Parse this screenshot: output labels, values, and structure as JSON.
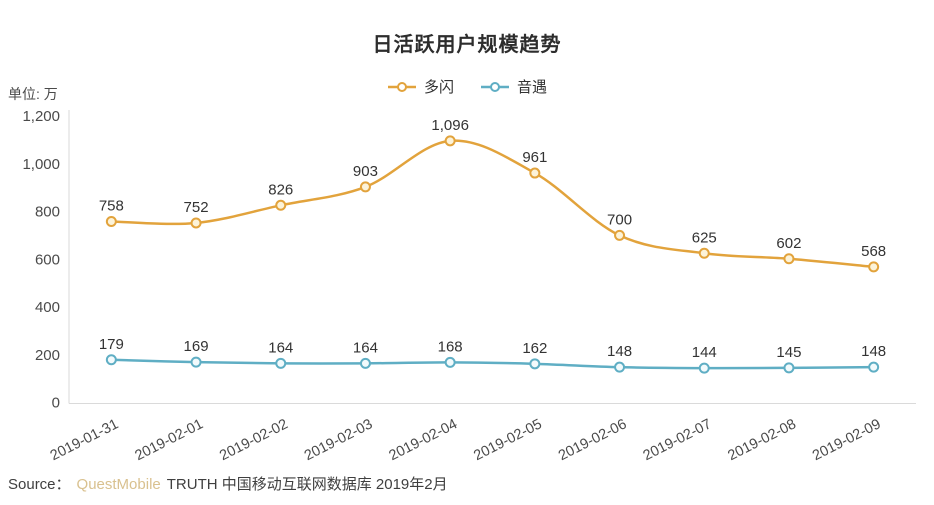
{
  "title": "日活跃用户规模趋势",
  "unit_label": "单位: 万",
  "legend": {
    "items": [
      {
        "label": "多闪",
        "color": "#E2A33C"
      },
      {
        "label": "音遇",
        "color": "#5FAEC4"
      }
    ]
  },
  "source": {
    "prefix": "Source：",
    "brand": "QuestMobile",
    "brand_color": "#D9C18F",
    "rest": "TRUTH 中国移动互联网数据库 2019年2月"
  },
  "chart_data": {
    "type": "line",
    "title": "日活跃用户规模趋势",
    "ylabel": "单位: 万",
    "xlabel": "",
    "categories": [
      "2019-01-31",
      "2019-02-01",
      "2019-02-02",
      "2019-02-03",
      "2019-02-04",
      "2019-02-05",
      "2019-02-06",
      "2019-02-07",
      "2019-02-08",
      "2019-02-09"
    ],
    "series": [
      {
        "name": "多闪",
        "color": "#E2A33C",
        "point_fill": "#FCF3D9",
        "values": [
          758,
          752,
          826,
          903,
          1096,
          961,
          700,
          625,
          602,
          568
        ]
      },
      {
        "name": "音遇",
        "color": "#5FAEC4",
        "point_fill": "#F2FAFC",
        "values": [
          179,
          169,
          164,
          164,
          168,
          162,
          148,
          144,
          145,
          148
        ]
      }
    ],
    "ylim": [
      0,
      1200
    ],
    "yticks": [
      0,
      200,
      400,
      600,
      800,
      1000,
      1200
    ],
    "ytick_labels": [
      "0",
      "200",
      "400",
      "600",
      "800",
      "1,000",
      "1,200"
    ],
    "grid": false,
    "smooth": true,
    "legend_position": "top",
    "data_labels": true,
    "axis_line_color": "#DADADA",
    "axis_text_color": "#4a4a4a",
    "label_text_color": "#333333",
    "x_label_rotation": -27
  }
}
